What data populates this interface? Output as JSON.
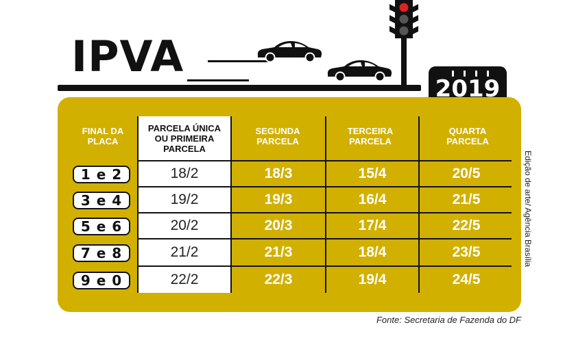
{
  "title": "IPVA",
  "year": "2019",
  "table": {
    "headers": [
      "FINAL DA PLACA",
      "PARCELA ÚNICA OU PRIMEIRA PARCELA",
      "SEGUNDA PARCELA",
      "TERCEIRA PARCELA",
      "QUARTA PARCELA"
    ],
    "rows": [
      {
        "plate": "1 e 2",
        "p1": "18/2",
        "p2": "18/3",
        "p3": "15/4",
        "p4": "20/5"
      },
      {
        "plate": "3 e 4",
        "p1": "19/2",
        "p2": "19/3",
        "p3": "16/4",
        "p4": "21/5"
      },
      {
        "plate": "5 e 6",
        "p1": "20/2",
        "p2": "20/3",
        "p3": "17/4",
        "p4": "22/5"
      },
      {
        "plate": "7 e 8",
        "p1": "21/2",
        "p2": "21/3",
        "p3": "18/4",
        "p4": "23/5"
      },
      {
        "plate": "9 e 0",
        "p1": "22/2",
        "p2": "22/3",
        "p3": "19/4",
        "p4": "24/5"
      }
    ]
  },
  "credit": "Edição de arte/ Agência Brasília",
  "source": "Fonte: Secretaria de Fazenda do DF",
  "colors": {
    "panel": "#d2b000",
    "dark": "#111111",
    "light_red": "#e02020"
  }
}
